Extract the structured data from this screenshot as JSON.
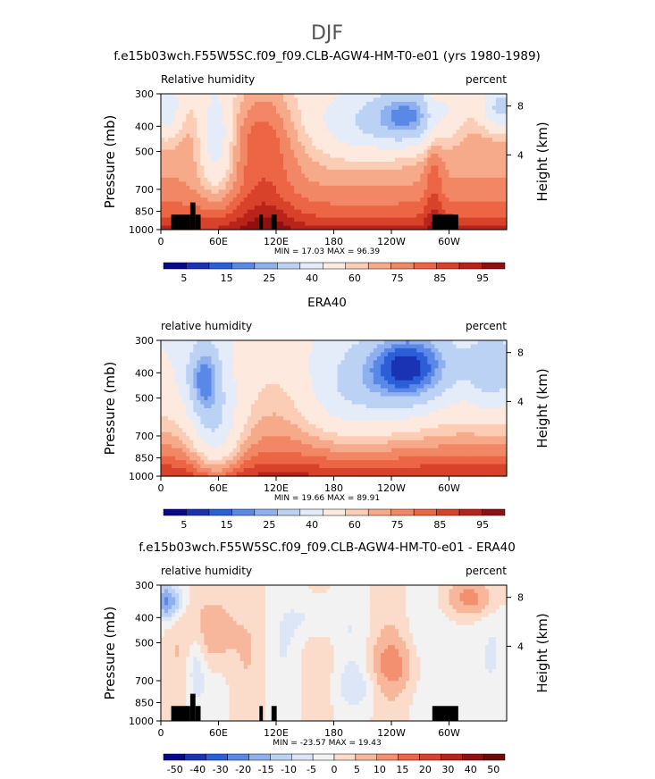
{
  "page_title": "DJF",
  "chart_data": [
    {
      "type": "heatmap",
      "title": "f.e15b03wch.F55W5SC.f09_f09.CLB-AGW4-HM-T0-e01 (yrs 1980-1989)",
      "left_label": "Relative humidity",
      "right_label": "percent",
      "ylabel": "Pressure (mb)",
      "y2label": "Height (km)",
      "x_ticks": [
        "0",
        "60E",
        "120E",
        "180",
        "120W",
        "60W"
      ],
      "y_ticks": [
        "300",
        "400",
        "500",
        "700",
        "850",
        "1000"
      ],
      "y2_ticks": [
        "8",
        "4"
      ],
      "stats": "MIN =   17.03   MAX =   96.39",
      "colorbar_labels": [
        "5",
        "15",
        "25",
        "40",
        "60",
        "75",
        "85",
        "95"
      ],
      "field": "model",
      "topography": true
    },
    {
      "type": "heatmap",
      "title": "ERA40",
      "left_label": "relative humidity",
      "right_label": "percent",
      "ylabel": "Pressure (mb)",
      "y2label": "Height (km)",
      "x_ticks": [
        "0",
        "60E",
        "120E",
        "180",
        "120W",
        "60W"
      ],
      "y_ticks": [
        "300",
        "400",
        "500",
        "700",
        "850",
        "1000"
      ],
      "y2_ticks": [
        "8",
        "4"
      ],
      "stats": "MIN =   19.66   MAX =   89.91",
      "colorbar_labels": [
        "5",
        "15",
        "25",
        "40",
        "60",
        "75",
        "85",
        "95"
      ],
      "field": "obs",
      "topography": false
    },
    {
      "type": "heatmap",
      "title": "f.e15b03wch.F55W5SC.f09_f09.CLB-AGW4-HM-T0-e01 - ERA40",
      "left_label": "relative humidity",
      "right_label": "percent",
      "ylabel": "Pressure (mb)",
      "y2label": "Height (km)",
      "x_ticks": [
        "0",
        "60E",
        "120E",
        "180",
        "120W",
        "60W"
      ],
      "y_ticks": [
        "300",
        "400",
        "500",
        "700",
        "850",
        "1000"
      ],
      "y2_ticks": [
        "8",
        "4"
      ],
      "stats": "MIN =  -23.57   MAX =   19.43",
      "colorbar_labels": [
        "-50",
        "-40",
        "-30",
        "-20",
        "-15",
        "-10",
        "-5",
        "0",
        "5",
        "10",
        "15",
        "20",
        "30",
        "40",
        "50"
      ],
      "field": "diff",
      "topography": true
    }
  ]
}
